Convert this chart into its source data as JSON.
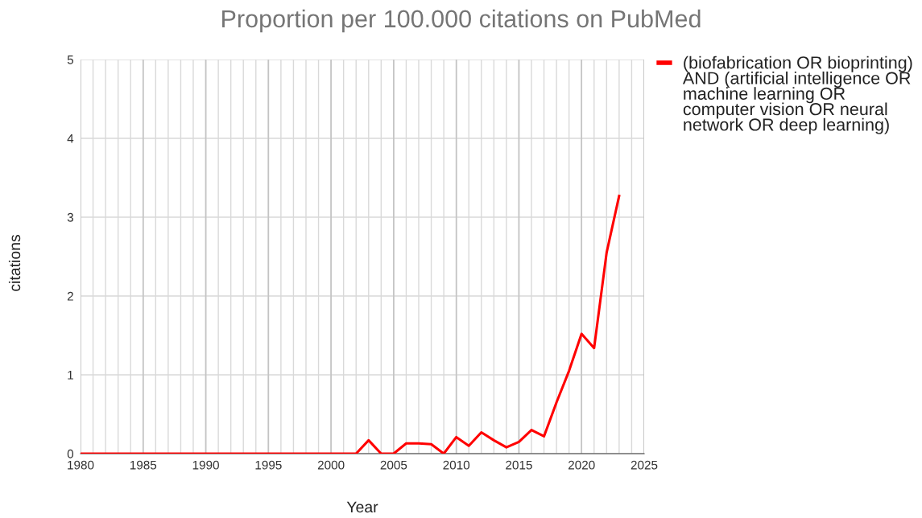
{
  "chart_data": {
    "type": "line",
    "title": "Proportion per 100.000 citations on PubMed",
    "xlabel": "Year",
    "ylabel": "citations",
    "x": [
      1980,
      1981,
      1982,
      1983,
      1984,
      1985,
      1986,
      1987,
      1988,
      1989,
      1990,
      1991,
      1992,
      1993,
      1994,
      1995,
      1996,
      1997,
      1998,
      1999,
      2000,
      2001,
      2002,
      2003,
      2004,
      2005,
      2006,
      2007,
      2008,
      2009,
      2010,
      2011,
      2012,
      2013,
      2014,
      2015,
      2016,
      2017,
      2018,
      2019,
      2020,
      2021,
      2022,
      2023
    ],
    "series": [
      {
        "name": "(biofabrication OR bioprinting) AND (artificial intelligence OR machine learning OR computer vision OR neural network OR deep learning)",
        "color": "#ff0000",
        "values": [
          0,
          0,
          0,
          0,
          0,
          0,
          0,
          0,
          0,
          0,
          0,
          0,
          0,
          0,
          0,
          0,
          0,
          0,
          0,
          0,
          0,
          0,
          0,
          0.17,
          0,
          0,
          0.13,
          0.13,
          0.12,
          0,
          0.21,
          0.1,
          0.27,
          0.17,
          0.08,
          0.15,
          0.3,
          0.22,
          0.65,
          1.05,
          1.52,
          1.34,
          2.55,
          3.27
        ]
      }
    ],
    "xlim": [
      1980,
      2025
    ],
    "xticks": [
      1980,
      {
        "value": 1981,
        "label": null
      },
      {
        "value": 1982,
        "label": null
      },
      {
        "value": 1983,
        "label": null
      },
      {
        "value": 1984,
        "label": null
      },
      1985,
      {
        "value": 1986,
        "label": null
      },
      {
        "value": 1987,
        "label": null
      },
      {
        "value": 1988,
        "label": null
      },
      {
        "value": 1989,
        "label": null
      },
      1990,
      {
        "value": 1991,
        "label": null
      },
      {
        "value": 1992,
        "label": null
      },
      {
        "value": 1993,
        "label": null
      },
      {
        "value": 1994,
        "label": null
      },
      1995,
      {
        "value": 1996,
        "label": null
      },
      {
        "value": 1997,
        "label": null
      },
      {
        "value": 1998,
        "label": null
      },
      {
        "value": 1999,
        "label": null
      },
      2000,
      {
        "value": 2001,
        "label": null
      },
      {
        "value": 2002,
        "label": null
      },
      {
        "value": 2003,
        "label": null
      },
      {
        "value": 2004,
        "label": null
      },
      2005,
      {
        "value": 2006,
        "label": null
      },
      {
        "value": 2007,
        "label": null
      },
      {
        "value": 2008,
        "label": null
      },
      {
        "value": 2009,
        "label": null
      },
      2010,
      {
        "value": 2011,
        "label": null
      },
      {
        "value": 2012,
        "label": null
      },
      {
        "value": 2013,
        "label": null
      },
      {
        "value": 2014,
        "label": null
      },
      2015,
      {
        "value": 2016,
        "label": null
      },
      {
        "value": 2017,
        "label": null
      },
      {
        "value": 2018,
        "label": null
      },
      {
        "value": 2019,
        "label": null
      },
      2020,
      {
        "value": 2021,
        "label": null
      },
      {
        "value": 2022,
        "label": null
      },
      {
        "value": 2023,
        "label": null
      },
      {
        "value": 2024,
        "label": null
      },
      2025
    ],
    "ylim": [
      0,
      5
    ],
    "yticks": [
      0,
      1,
      2,
      3,
      4,
      5
    ],
    "grid": true,
    "legend": "top right",
    "line_style": "solid",
    "marker": "none"
  }
}
